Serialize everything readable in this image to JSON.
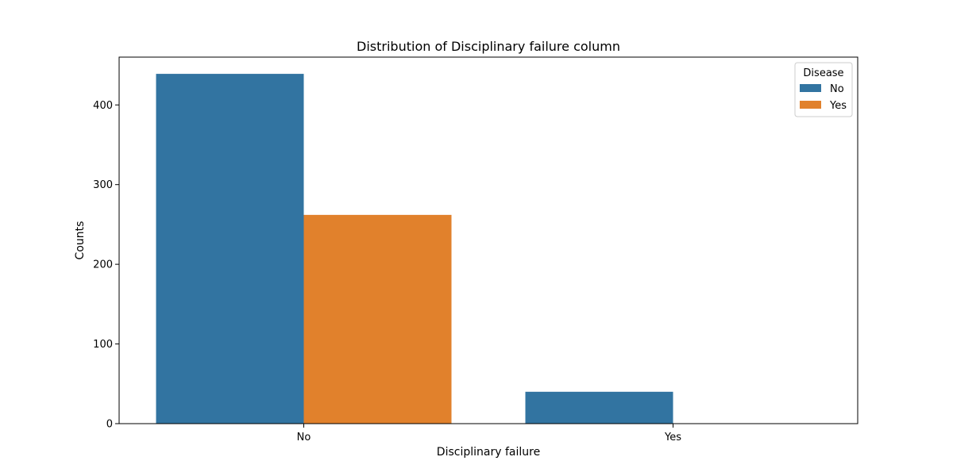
{
  "chart_data": {
    "type": "bar",
    "title": "Distribution of Disciplinary failure column",
    "xlabel": "Disciplinary failure",
    "ylabel": "Counts",
    "categories": [
      "No",
      "Yes"
    ],
    "series": [
      {
        "name": "No",
        "values": [
          439,
          40
        ],
        "color": "#3274a1"
      },
      {
        "name": "Yes",
        "values": [
          262,
          0
        ],
        "color": "#e1812c"
      }
    ],
    "ylim": [
      0,
      460
    ],
    "yticks": [
      0,
      100,
      200,
      300,
      400
    ],
    "legend": {
      "title": "Disease",
      "placement": "top-right"
    },
    "grid": false
  }
}
